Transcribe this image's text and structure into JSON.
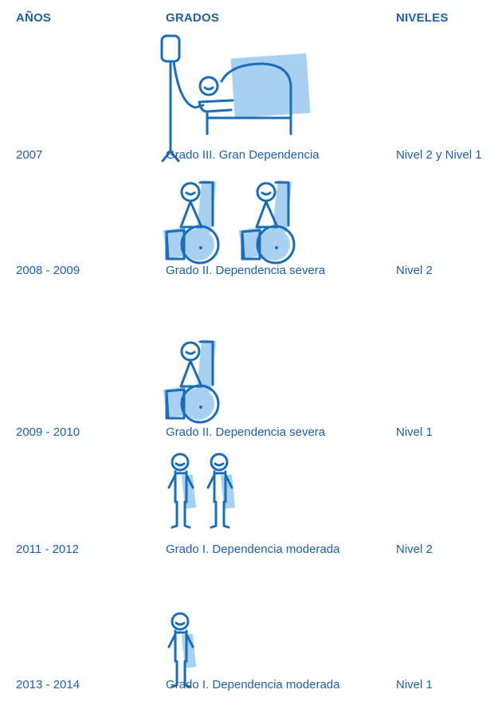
{
  "table": {
    "headers": [
      "AÑOS",
      "GRADOS",
      "NIVELES"
    ],
    "rows": [
      [
        "2007",
        "Grado III. Gran Dependencia",
        "Nivel 2 y Nivel 1"
      ],
      [
        "2008 - 2009",
        "Grado II. Dependencia severa",
        "Nivel 2"
      ],
      [
        "2009 - 2010",
        "Grado II. Dependencia severa",
        "Nivel 1"
      ],
      [
        "2011 - 2012",
        "Grado I. Dependencia moderada",
        "Nivel 2"
      ],
      [
        "2013 - 2014",
        "Grado I. Dependencia moderada",
        "Nivel 1"
      ]
    ]
  }
}
